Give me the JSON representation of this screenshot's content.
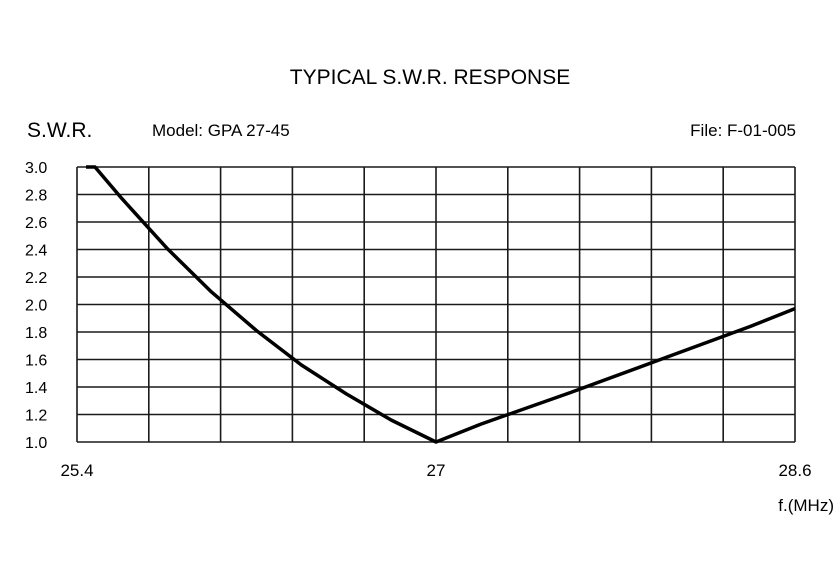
{
  "header": {
    "title": "TYPICAL S.W.R. RESPONSE",
    "y_axis_name": "S.W.R.",
    "model_text": "Model:  GPA 27-45",
    "file_text": "File:  F-01-005"
  },
  "chart_data": {
    "type": "line",
    "title": "TYPICAL S.W.R. RESPONSE",
    "xlabel": "f.(MHz)",
    "ylabel": "S.W.R.",
    "xlim": [
      25.4,
      28.6
    ],
    "ylim": [
      1.0,
      3.0
    ],
    "x_ticks": [
      "25.4",
      "27",
      "28.6"
    ],
    "y_ticks": [
      "1.0",
      "1.2",
      "1.4",
      "1.6",
      "1.8",
      "2.0",
      "2.2",
      "2.4",
      "2.6",
      "2.8",
      "3.0"
    ],
    "grid": true,
    "series": [
      {
        "x": [
          25.44,
          25.48,
          25.6,
          25.8,
          26.0,
          26.2,
          26.4,
          26.6,
          26.8,
          27.0,
          27.2,
          27.6,
          28.0,
          28.4,
          28.6
        ],
        "y": [
          3.0,
          3.0,
          2.77,
          2.41,
          2.09,
          1.81,
          1.56,
          1.35,
          1.16,
          1.0,
          1.13,
          1.36,
          1.6,
          1.84,
          1.97
        ]
      }
    ],
    "colors": {
      "line": "#000000",
      "grid": "#1a1a1a"
    }
  }
}
